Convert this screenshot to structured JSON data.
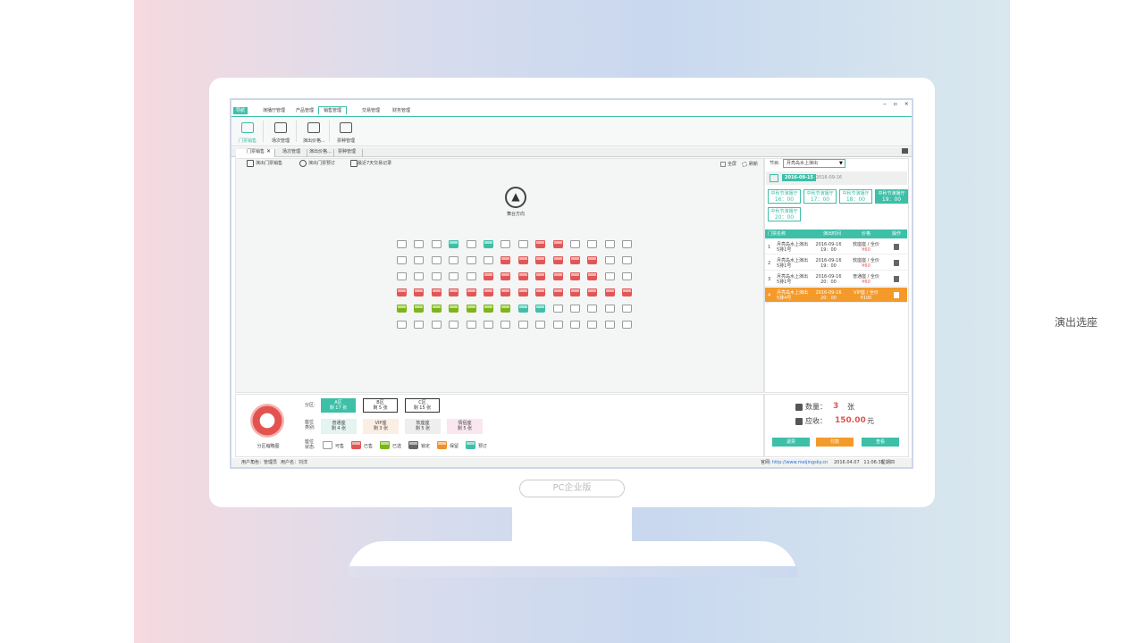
{
  "side_label": "演出选座",
  "edition": "PC企业版",
  "menu": [
    "导航",
    "演播厅管理",
    "产品管理",
    "销售管理",
    "交易管理",
    "财务管理"
  ],
  "toolbar": [
    "门票销售",
    "场次管理",
    "演出价格...",
    "票种管理"
  ],
  "doc_tabs": [
    "门票销售",
    "场次管理",
    "演出价格...",
    "票种管理"
  ],
  "actions": [
    "演出门票销售",
    "演出门票预订",
    "最近7天交易记录"
  ],
  "view_actions": [
    "全屏",
    "刷新"
  ],
  "stage": "舞台方向",
  "program_label": "节目:",
  "program": "月亮岛水上演出",
  "dates": [
    "2016-09-15",
    "2016-09-16"
  ],
  "sessions": [
    {
      "hall": "中秋节演播厅",
      "time": "16：00"
    },
    {
      "hall": "中秋节演播厅",
      "time": "17：00"
    },
    {
      "hall": "中秋节演播厅",
      "time": "18：00"
    },
    {
      "hall": "中秋节演播厅",
      "time": "19：00"
    },
    {
      "hall": "中秋节演播厅",
      "time": "20：00"
    }
  ],
  "ticket_table": {
    "headers": [
      "门票名称",
      "演出时间",
      "价格",
      "操作"
    ],
    "rows": [
      [
        "1",
        "月亮岛水上演出",
        "5排1号",
        "2016-09-16",
        "19：00",
        "软座座 / 全价",
        "¥60"
      ],
      [
        "2",
        "月亮岛水上演出",
        "5排1号",
        "2016-09-16",
        "19：00",
        "软座座 / 全价",
        "¥60"
      ],
      [
        "3",
        "月亮岛水上演出",
        "5排1号",
        "2016-09-16",
        "20：00",
        "普通座 / 全价",
        "¥60"
      ],
      [
        "4",
        "月亮岛水上演出",
        "5排4号",
        "2016-09-16",
        "20：00",
        "VIP座 / 全价",
        "¥100"
      ]
    ]
  },
  "zone_map_label": "分区缩略图",
  "zone_label": "分区:",
  "zones": [
    {
      "name": "A区",
      "left": "剩 17 张"
    },
    {
      "name": "B区",
      "left": "剩 5 张"
    },
    {
      "name": "C区",
      "left": "剩 15 张"
    }
  ],
  "seat_type_label": "座位类别:",
  "seat_types": [
    {
      "name": "普通座",
      "left": "剩 4 张"
    },
    {
      "name": "VIP座",
      "left": "剩 3 张"
    },
    {
      "name": "软座座",
      "left": "剩 5 张"
    },
    {
      "name": "情侣座",
      "left": "剩 5 张"
    }
  ],
  "seat_status_label": "座位状态:",
  "seat_statuses": [
    "可售",
    "已售",
    "已选",
    "锁定",
    "保留",
    "预订"
  ],
  "quantity_label": "数量：",
  "quantity": "3",
  "quantity_unit": "张",
  "amount_label": "应收：",
  "amount": "150.00",
  "amount_unit": "元",
  "buttons": [
    "退票",
    "付款",
    "查看"
  ],
  "status_bar": {
    "role": "用户角色：管理员",
    "user": "用户名：刘洋",
    "site_label": "官网:",
    "site": "http://www.meijingsky.cn",
    "datetime": "2016.04.07   11:06:35",
    "weekday": "星期四"
  }
}
